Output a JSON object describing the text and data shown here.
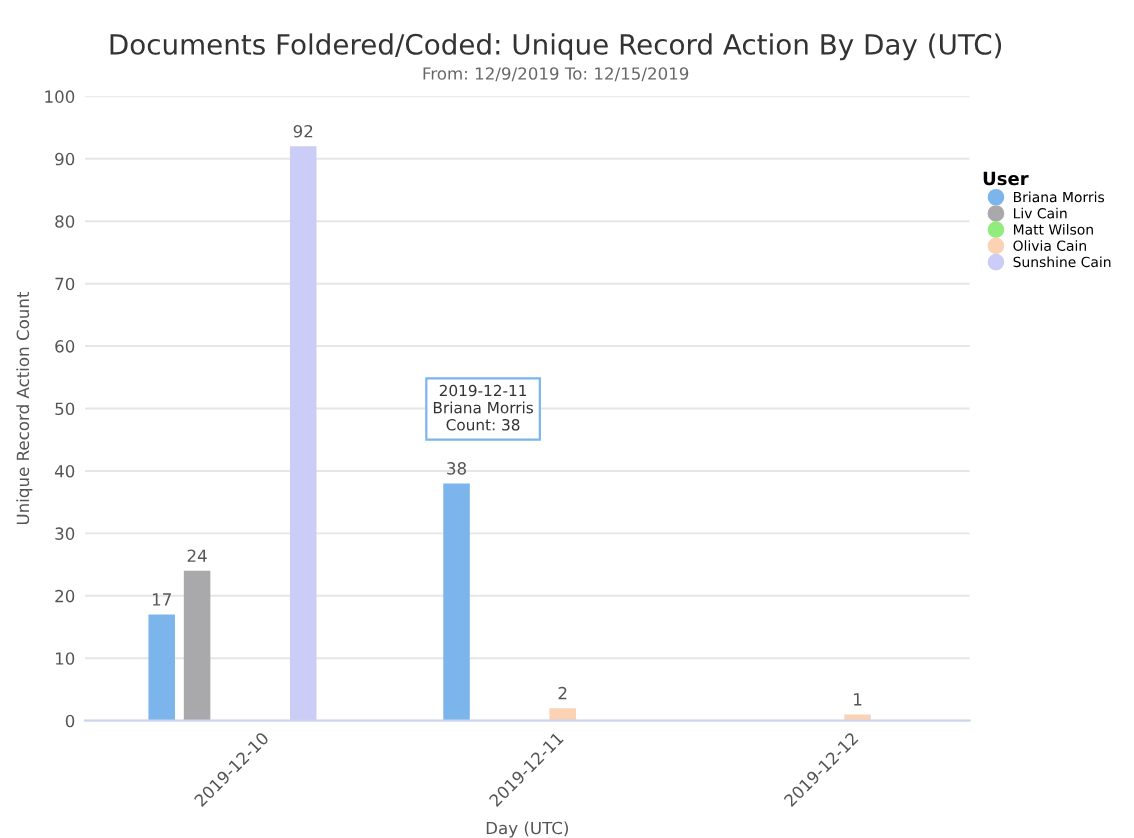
{
  "chart_data": {
    "type": "bar",
    "title": "Documents Foldered/Coded: Unique Record Action By Day (UTC)",
    "subtitle": "From: 12/9/2019 To: 12/15/2019",
    "xlabel": "Day (UTC)",
    "ylabel": "Unique Record Action Count",
    "legend_title": "User",
    "categories": [
      "2019-12-10",
      "2019-12-11",
      "2019-12-12"
    ],
    "series": [
      {
        "name": "Briana Morris",
        "color": "#7cb5ec",
        "values": [
          17,
          38,
          null
        ]
      },
      {
        "name": "Liv Cain",
        "color": "#a9a9ab",
        "values": [
          24,
          null,
          null
        ]
      },
      {
        "name": "Matt Wilson",
        "color": "#90ed7d",
        "values": [
          null,
          null,
          null
        ]
      },
      {
        "name": "Olivia Cain",
        "color": "#fbd3b4",
        "values": [
          null,
          2,
          1
        ]
      },
      {
        "name": "Sunshine Cain",
        "color": "#cbcdf6",
        "values": [
          92,
          null,
          null
        ]
      }
    ],
    "ylim": [
      0,
      100
    ],
    "yticks": [
      0,
      10,
      20,
      30,
      40,
      50,
      60,
      70,
      80,
      90,
      100
    ],
    "grid": "y",
    "legend": "right",
    "data_labels": true,
    "annotations": [
      "2019-12-11\nBriana Morris\nCount: 38"
    ]
  }
}
